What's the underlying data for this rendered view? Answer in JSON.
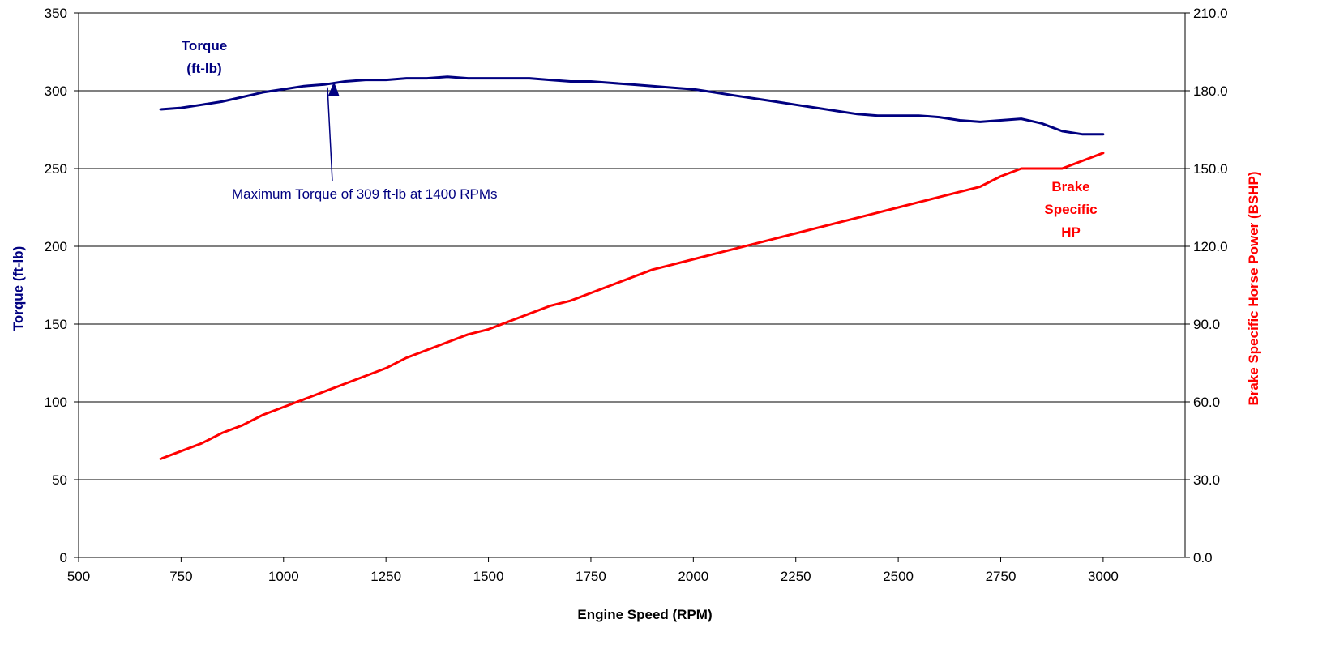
{
  "chart_data": {
    "type": "line",
    "xlabel": "Engine Speed (RPM)",
    "ylabel_left": "Torque (ft-lb)",
    "ylabel_right": "Brake Specific Horse Power (BSHP)",
    "xlim": [
      500,
      3200
    ],
    "ylim_left": [
      0,
      350
    ],
    "ylim_right": [
      0,
      210
    ],
    "x_ticks": [
      "500",
      "750",
      "1000",
      "1250",
      "1500",
      "1750",
      "2000",
      "2250",
      "2500",
      "2750",
      "3000"
    ],
    "y_left_ticks": [
      "0",
      "50",
      "100",
      "150",
      "200",
      "250",
      "300",
      "350"
    ],
    "y_right_ticks": [
      "0.0",
      "30.0",
      "60.0",
      "90.0",
      "120.0",
      "150.0",
      "180.0",
      "210.0"
    ],
    "grid": "horizontal",
    "series": [
      {
        "name_lines": [
          "Torque",
          "(ft-lb)"
        ],
        "axis": "left",
        "color": "#000080",
        "x": [
          700,
          750,
          800,
          850,
          900,
          950,
          1000,
          1050,
          1100,
          1150,
          1200,
          1250,
          1300,
          1350,
          1400,
          1450,
          1500,
          1550,
          1600,
          1650,
          1700,
          1750,
          1800,
          1850,
          1900,
          1950,
          2000,
          2050,
          2100,
          2150,
          2200,
          2250,
          2300,
          2350,
          2400,
          2450,
          2500,
          2550,
          2600,
          2650,
          2700,
          2750,
          2800,
          2850,
          2900,
          2950,
          3000
        ],
        "y": [
          288,
          289,
          291,
          293,
          296,
          299,
          301,
          303,
          304,
          306,
          307,
          307,
          308,
          308,
          309,
          308,
          308,
          308,
          308,
          307,
          306,
          306,
          305,
          304,
          303,
          302,
          301,
          299,
          297,
          295,
          293,
          291,
          289,
          287,
          285,
          284,
          284,
          284,
          283,
          281,
          280,
          281,
          282,
          279,
          274,
          272,
          272
        ]
      },
      {
        "name_lines": [
          "Brake",
          "Specific",
          "HP"
        ],
        "axis": "right",
        "color": "#ff0000",
        "x": [
          700,
          750,
          800,
          850,
          900,
          950,
          1000,
          1050,
          1100,
          1150,
          1200,
          1250,
          1300,
          1350,
          1400,
          1450,
          1500,
          1550,
          1600,
          1650,
          1700,
          1750,
          1800,
          1850,
          1900,
          1950,
          2000,
          2050,
          2100,
          2150,
          2200,
          2250,
          2300,
          2350,
          2400,
          2450,
          2500,
          2550,
          2600,
          2650,
          2700,
          2750,
          2800,
          2850,
          2900,
          2950,
          3000
        ],
        "y": [
          38,
          41,
          44,
          48,
          51,
          55,
          58,
          61,
          64,
          67,
          70,
          73,
          77,
          80,
          83,
          86,
          88,
          91,
          94,
          97,
          99,
          102,
          105,
          108,
          111,
          113,
          115,
          117,
          119,
          121,
          123,
          125,
          127,
          129,
          131,
          133,
          135,
          137,
          139,
          141,
          143,
          147,
          150,
          150,
          150,
          153,
          156
        ]
      }
    ],
    "annotation": {
      "text": "Maximum Torque of 309 ft-lb at 1400 RPMs",
      "arrow_target": {
        "x": 1400,
        "y": 309
      },
      "color": "#000080"
    }
  }
}
